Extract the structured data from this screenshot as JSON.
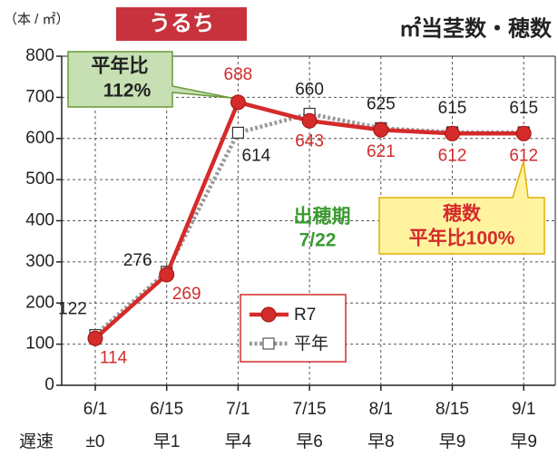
{
  "chart_data": {
    "type": "line",
    "title": "㎡当茎数・穂数",
    "unit_label": "（本 / ㎡）",
    "tag": "うるち",
    "categories": [
      "6/1",
      "6/15",
      "7/1",
      "7/15",
      "8/1",
      "8/15",
      "9/1"
    ],
    "sublabel_title": "遅速",
    "sublabels": [
      "±0",
      "早1",
      "早4",
      "早6",
      "早8",
      "早9",
      "早9"
    ],
    "series": [
      {
        "name": "R7",
        "color": "#d42b2b",
        "values": [
          114,
          269,
          688,
          643,
          621,
          612,
          612
        ]
      },
      {
        "name": "平年",
        "color": "#9a9a9a",
        "values": [
          122,
          276,
          614,
          660,
          625,
          615,
          615
        ]
      }
    ],
    "ylim": [
      0,
      800
    ],
    "yticks": [
      0,
      100,
      200,
      300,
      400,
      500,
      600,
      700,
      800
    ],
    "grid": true,
    "annotations": [
      {
        "lines": [
          "平年比",
          "112%"
        ]
      },
      {
        "lines": [
          "出穂期",
          "7/22"
        ]
      },
      {
        "lines": [
          "穂数",
          "平年比100%"
        ]
      }
    ]
  }
}
